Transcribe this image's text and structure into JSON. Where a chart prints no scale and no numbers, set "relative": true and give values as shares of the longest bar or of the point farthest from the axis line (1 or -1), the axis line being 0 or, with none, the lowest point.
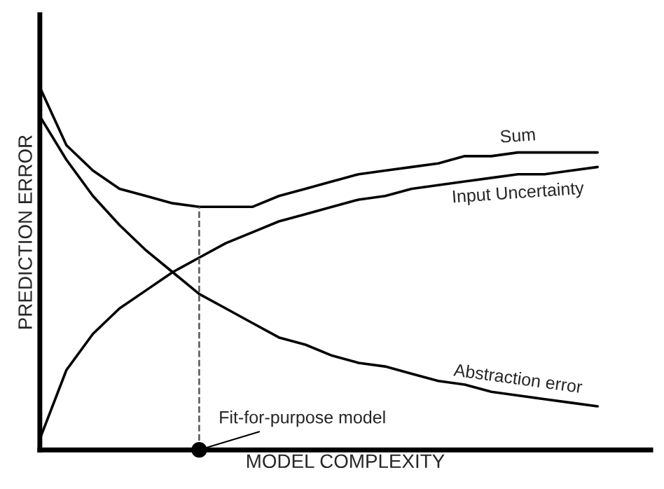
{
  "chart_data": {
    "type": "line",
    "relative": true,
    "xlabel": "MODEL COMPLEXITY",
    "ylabel": "PREDICTION ERROR",
    "categories": [
      null,
      null,
      null,
      null,
      null,
      null,
      null,
      null,
      null,
      null,
      null,
      null,
      null,
      null,
      null,
      null,
      null,
      null,
      null,
      null,
      null,
      null
    ],
    "series": [
      {
        "name": "Sum",
        "color": "#000000",
        "values": [
          1.0,
          0.84,
          0.77,
          0.72,
          0.7,
          0.68,
          0.67,
          0.67,
          0.67,
          0.7,
          0.72,
          0.74,
          0.76,
          0.77,
          0.78,
          0.79,
          0.81,
          0.81,
          0.82,
          0.82,
          0.82,
          0.82
        ]
      },
      {
        "name": "Input Uncertainty",
        "color": "#000000",
        "values": [
          0.03,
          0.22,
          0.32,
          0.39,
          0.44,
          0.49,
          0.53,
          0.57,
          0.6,
          0.63,
          0.65,
          0.67,
          0.69,
          0.7,
          0.72,
          0.73,
          0.74,
          0.75,
          0.76,
          0.76,
          0.77,
          0.78
        ]
      },
      {
        "name": "Abstraction error",
        "color": "#000000",
        "values": [
          0.92,
          0.8,
          0.7,
          0.62,
          0.55,
          0.49,
          0.43,
          0.39,
          0.35,
          0.31,
          0.29,
          0.26,
          0.24,
          0.23,
          0.21,
          0.19,
          0.18,
          0.16,
          0.15,
          0.14,
          0.13,
          0.12
        ]
      }
    ],
    "annotations": [
      "Fit-for-purpose model"
    ],
    "marker": "none",
    "line_style": "solid"
  }
}
